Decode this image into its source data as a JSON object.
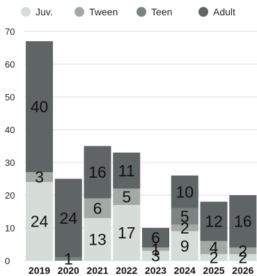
{
  "chart_data": {
    "type": "bar",
    "stacked": true,
    "categories": [
      "2019",
      "2020",
      "2021",
      "2022",
      "2023",
      "2024",
      "2025",
      "2026"
    ],
    "series": [
      {
        "name": "Juv.",
        "color": "#d6ddd8",
        "values": [
          24,
          0,
          13,
          17,
          3,
          9,
          2,
          2
        ]
      },
      {
        "name": "Tween",
        "color": "#a3aaa6",
        "values": [
          3,
          0,
          6,
          5,
          1,
          2,
          4,
          2
        ]
      },
      {
        "name": "Teen",
        "color": "#7b8480",
        "values": [
          0,
          1,
          0,
          0,
          0,
          5,
          0,
          0
        ]
      },
      {
        "name": "Adult",
        "color": "#5f6464",
        "values": [
          40,
          24,
          16,
          11,
          6,
          10,
          12,
          16
        ]
      }
    ],
    "y_ticks": [
      0,
      10,
      20,
      30,
      40,
      50,
      60,
      70
    ],
    "ylim": [
      0,
      70
    ],
    "grid": true,
    "legend_position": "top"
  }
}
